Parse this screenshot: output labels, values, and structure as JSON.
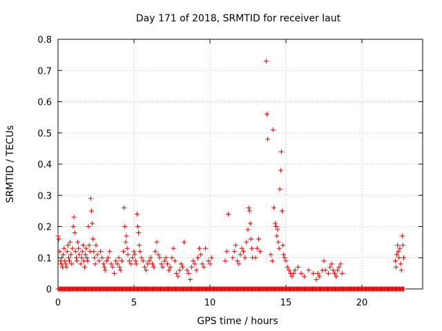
{
  "chart_data": {
    "type": "scatter",
    "title": "Day 171 of 2018, SRMTID for receiver laut",
    "xlabel": "GPS time / hours",
    "ylabel": "SRMTID / TECUs",
    "xlim": [
      0,
      24
    ],
    "ylim": [
      0,
      0.8
    ],
    "xticks": [
      0,
      5,
      10,
      15,
      20
    ],
    "xtick_labels": [
      "0",
      "5",
      "10",
      "15",
      "20"
    ],
    "yticks": [
      0,
      0.1,
      0.2,
      0.3,
      0.4,
      0.5,
      0.6,
      0.7,
      0.8
    ],
    "ytick_labels": [
      "0",
      "0.1",
      "0.2",
      "0.3",
      "0.4",
      "0.5",
      "0.6",
      "0.7",
      "0.8"
    ],
    "grid": true,
    "marker": "+",
    "color": "#dd0000",
    "series": [
      {
        "name": "SRMTID",
        "points": [
          [
            0.0,
            0.17
          ],
          [
            0.05,
            0.16
          ],
          [
            0.1,
            0.12
          ],
          [
            0.15,
            0.09
          ],
          [
            0.2,
            0.08
          ],
          [
            0.25,
            0.1
          ],
          [
            0.3,
            0.07
          ],
          [
            0.35,
            0.11
          ],
          [
            0.4,
            0.13
          ],
          [
            0.45,
            0.09
          ],
          [
            0.5,
            0.08
          ],
          [
            0.55,
            0.07
          ],
          [
            0.6,
            0.12
          ],
          [
            0.65,
            0.14
          ],
          [
            0.7,
            0.1
          ],
          [
            0.75,
            0.09
          ],
          [
            0.8,
            0.15
          ],
          [
            0.85,
            0.11
          ],
          [
            0.9,
            0.08
          ],
          [
            0.95,
            0.13
          ],
          [
            1.0,
            0.2
          ],
          [
            1.05,
            0.23
          ],
          [
            1.1,
            0.18
          ],
          [
            1.15,
            0.12
          ],
          [
            1.2,
            0.1
          ],
          [
            1.25,
            0.09
          ],
          [
            1.3,
            0.15
          ],
          [
            1.35,
            0.13
          ],
          [
            1.4,
            0.11
          ],
          [
            1.5,
            0.08
          ],
          [
            1.55,
            0.1
          ],
          [
            1.6,
            0.12
          ],
          [
            1.65,
            0.14
          ],
          [
            1.7,
            0.09
          ],
          [
            1.75,
            0.07
          ],
          [
            1.8,
            0.11
          ],
          [
            1.85,
            0.13
          ],
          [
            1.9,
            0.1
          ],
          [
            1.95,
            0.09
          ],
          [
            2.0,
            0.2
          ],
          [
            2.05,
            0.14
          ],
          [
            2.1,
            0.12
          ],
          [
            2.15,
            0.29
          ],
          [
            2.2,
            0.25
          ],
          [
            2.25,
            0.21
          ],
          [
            2.3,
            0.16
          ],
          [
            2.35,
            0.12
          ],
          [
            2.4,
            0.1
          ],
          [
            2.45,
            0.08
          ],
          [
            2.5,
            0.14
          ],
          [
            2.6,
            0.11
          ],
          [
            2.7,
            0.09
          ],
          [
            2.8,
            0.12
          ],
          [
            2.9,
            0.1
          ],
          [
            3.0,
            0.08
          ],
          [
            3.05,
            0.07
          ],
          [
            3.1,
            0.06
          ],
          [
            3.2,
            0.09
          ],
          [
            3.3,
            0.1
          ],
          [
            3.4,
            0.12
          ],
          [
            3.5,
            0.08
          ],
          [
            3.6,
            0.07
          ],
          [
            3.7,
            0.05
          ],
          [
            3.8,
            0.09
          ],
          [
            3.9,
            0.08
          ],
          [
            4.0,
            0.1
          ],
          [
            4.05,
            0.07
          ],
          [
            4.1,
            0.06
          ],
          [
            4.2,
            0.09
          ],
          [
            4.3,
            0.12
          ],
          [
            4.35,
            0.26
          ],
          [
            4.4,
            0.2
          ],
          [
            4.45,
            0.15
          ],
          [
            4.5,
            0.17
          ],
          [
            4.55,
            0.13
          ],
          [
            4.6,
            0.11
          ],
          [
            4.7,
            0.09
          ],
          [
            4.8,
            0.08
          ],
          [
            4.9,
            0.1
          ],
          [
            5.0,
            0.12
          ],
          [
            5.05,
            0.11
          ],
          [
            5.1,
            0.09
          ],
          [
            5.15,
            0.08
          ],
          [
            5.2,
            0.24
          ],
          [
            5.25,
            0.2
          ],
          [
            5.3,
            0.18
          ],
          [
            5.35,
            0.14
          ],
          [
            5.4,
            0.12
          ],
          [
            5.5,
            0.1
          ],
          [
            5.6,
            0.09
          ],
          [
            5.7,
            0.07
          ],
          [
            5.8,
            0.06
          ],
          [
            5.9,
            0.08
          ],
          [
            6.0,
            0.09
          ],
          [
            6.1,
            0.1
          ],
          [
            6.2,
            0.08
          ],
          [
            6.3,
            0.07
          ],
          [
            6.4,
            0.12
          ],
          [
            6.5,
            0.15
          ],
          [
            6.6,
            0.11
          ],
          [
            6.7,
            0.1
          ],
          [
            6.8,
            0.08
          ],
          [
            6.9,
            0.07
          ],
          [
            7.0,
            0.09
          ],
          [
            7.1,
            0.1
          ],
          [
            7.2,
            0.08
          ],
          [
            7.3,
            0.06
          ],
          [
            7.4,
            0.07
          ],
          [
            7.5,
            0.1
          ],
          [
            7.6,
            0.13
          ],
          [
            7.7,
            0.09
          ],
          [
            7.8,
            0.05
          ],
          [
            7.9,
            0.04
          ],
          [
            8.0,
            0.06
          ],
          [
            8.1,
            0.08
          ],
          [
            8.2,
            0.07
          ],
          [
            8.3,
            0.15
          ],
          [
            8.5,
            0.06
          ],
          [
            8.6,
            0.05
          ],
          [
            8.7,
            0.03
          ],
          [
            8.8,
            0.07
          ],
          [
            8.9,
            0.09
          ],
          [
            9.0,
            0.08
          ],
          [
            9.1,
            0.06
          ],
          [
            9.2,
            0.1
          ],
          [
            9.3,
            0.13
          ],
          [
            9.4,
            0.11
          ],
          [
            9.5,
            0.08
          ],
          [
            9.6,
            0.07
          ],
          [
            9.7,
            0.13
          ],
          [
            9.9,
            0.09
          ],
          [
            10.0,
            0.08
          ],
          [
            10.1,
            0.1
          ],
          [
            11.0,
            0.09
          ],
          [
            11.1,
            0.12
          ],
          [
            11.2,
            0.24
          ],
          [
            11.5,
            0.1
          ],
          [
            11.6,
            0.12
          ],
          [
            11.7,
            0.14
          ],
          [
            11.8,
            0.09
          ],
          [
            11.9,
            0.08
          ],
          [
            12.0,
            0.11
          ],
          [
            12.1,
            0.13
          ],
          [
            12.2,
            0.12
          ],
          [
            12.3,
            0.1
          ],
          [
            12.4,
            0.15
          ],
          [
            12.5,
            0.19
          ],
          [
            12.55,
            0.26
          ],
          [
            12.6,
            0.25
          ],
          [
            12.65,
            0.21
          ],
          [
            12.7,
            0.16
          ],
          [
            12.75,
            0.13
          ],
          [
            12.8,
            0.1
          ],
          [
            13.0,
            0.1
          ],
          [
            13.1,
            0.13
          ],
          [
            13.2,
            0.16
          ],
          [
            13.3,
            0.12
          ],
          [
            13.7,
            0.73
          ],
          [
            13.75,
            0.56
          ],
          [
            13.8,
            0.48
          ],
          [
            14.0,
            0.11
          ],
          [
            14.1,
            0.09
          ],
          [
            14.15,
            0.51
          ],
          [
            14.2,
            0.26
          ],
          [
            14.3,
            0.21
          ],
          [
            14.35,
            0.2
          ],
          [
            14.4,
            0.17
          ],
          [
            14.45,
            0.19
          ],
          [
            14.5,
            0.15
          ],
          [
            14.55,
            0.13
          ],
          [
            14.6,
            0.32
          ],
          [
            14.65,
            0.38
          ],
          [
            14.7,
            0.44
          ],
          [
            14.75,
            0.25
          ],
          [
            14.8,
            0.14
          ],
          [
            14.85,
            0.11
          ],
          [
            14.9,
            0.1
          ],
          [
            15.0,
            0.09
          ],
          [
            15.1,
            0.07
          ],
          [
            15.2,
            0.06
          ],
          [
            15.3,
            0.05
          ],
          [
            15.4,
            0.04
          ],
          [
            15.5,
            0.05
          ],
          [
            15.6,
            0.06
          ],
          [
            15.8,
            0.07
          ],
          [
            16.0,
            0.05
          ],
          [
            16.2,
            0.04
          ],
          [
            16.5,
            0.06
          ],
          [
            16.8,
            0.05
          ],
          [
            17.0,
            0.03
          ],
          [
            17.1,
            0.05
          ],
          [
            17.2,
            0.04
          ],
          [
            17.4,
            0.06
          ],
          [
            17.5,
            0.09
          ],
          [
            17.6,
            0.06
          ],
          [
            17.8,
            0.05
          ],
          [
            17.9,
            0.07
          ],
          [
            18.0,
            0.08
          ],
          [
            18.1,
            0.06
          ],
          [
            18.2,
            0.05
          ],
          [
            18.3,
            0.04
          ],
          [
            18.4,
            0.06
          ],
          [
            18.5,
            0.07
          ],
          [
            18.6,
            0.08
          ],
          [
            18.7,
            0.05
          ],
          [
            22.2,
            0.09
          ],
          [
            22.25,
            0.07
          ],
          [
            22.3,
            0.11
          ],
          [
            22.35,
            0.14
          ],
          [
            22.4,
            0.12
          ],
          [
            22.45,
            0.1
          ],
          [
            22.5,
            0.13
          ],
          [
            22.55,
            0.08
          ],
          [
            22.6,
            0.06
          ],
          [
            22.65,
            0.17
          ],
          [
            22.7,
            0.14
          ],
          [
            22.75,
            0.1
          ]
        ],
        "zero_band": {
          "from": 0.0,
          "to": 22.8,
          "value": 0
        }
      }
    ]
  }
}
